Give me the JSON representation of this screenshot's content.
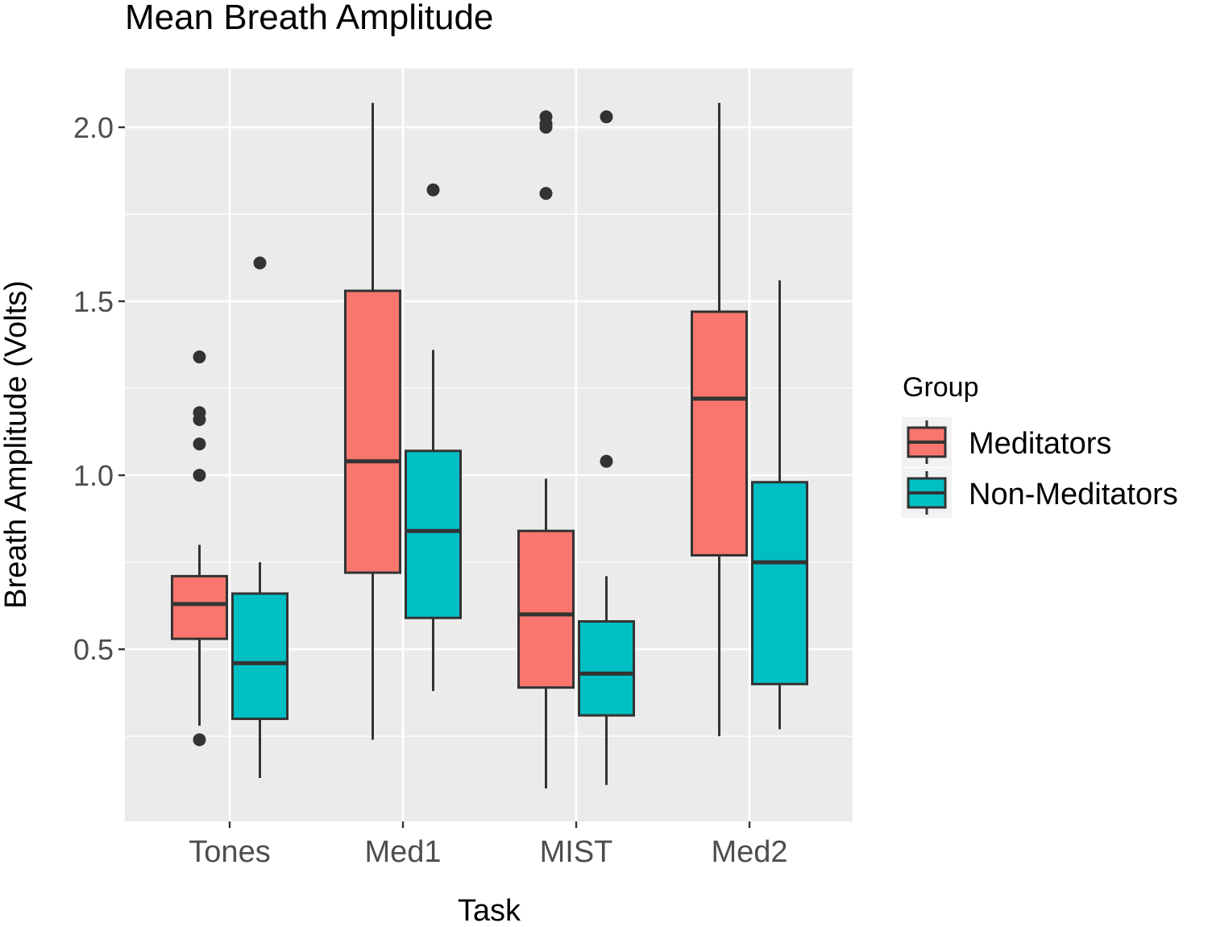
{
  "chart_data": {
    "type": "boxplot",
    "title": "Mean Breath Amplitude",
    "xlabel": "Task",
    "ylabel": "Breath Amplitude (Volts)",
    "categories": [
      "Tones",
      "Med1",
      "MIST",
      "Med2"
    ],
    "yticks": [
      0.5,
      1.0,
      1.5,
      2.0
    ],
    "ytick_labels": [
      "0.5",
      "1.0",
      "1.5",
      "2.0"
    ],
    "ylim": [
      0.005,
      2.169
    ],
    "grid": true,
    "legend": {
      "title": "Group",
      "placement": "right"
    },
    "series": [
      {
        "name": "Meditators",
        "color": "#F8766D",
        "boxes": [
          {
            "whisker_low": 0.28,
            "q1": 0.53,
            "median": 0.63,
            "q3": 0.71,
            "whisker_high": 0.8,
            "outliers": [
              1.34,
              1.18,
              1.16,
              1.09,
              1.0,
              0.24
            ]
          },
          {
            "whisker_low": 0.24,
            "q1": 0.72,
            "median": 1.04,
            "q3": 1.53,
            "whisker_high": 2.07,
            "outliers": []
          },
          {
            "whisker_low": 0.1,
            "q1": 0.39,
            "median": 0.6,
            "q3": 0.84,
            "whisker_high": 0.99,
            "outliers": [
              2.03,
              2.01,
              2.0,
              1.81
            ]
          },
          {
            "whisker_low": 0.25,
            "q1": 0.77,
            "median": 1.22,
            "q3": 1.47,
            "whisker_high": 2.07,
            "outliers": []
          }
        ]
      },
      {
        "name": "Non-Meditators",
        "color": "#00BFC4",
        "boxes": [
          {
            "whisker_low": 0.13,
            "q1": 0.3,
            "median": 0.46,
            "q3": 0.66,
            "whisker_high": 0.75,
            "outliers": [
              1.61
            ]
          },
          {
            "whisker_low": 0.38,
            "q1": 0.59,
            "median": 0.84,
            "q3": 1.07,
            "whisker_high": 1.36,
            "outliers": [
              1.82
            ]
          },
          {
            "whisker_low": 0.11,
            "q1": 0.31,
            "median": 0.43,
            "q3": 0.58,
            "whisker_high": 0.71,
            "outliers": [
              2.03,
              1.04
            ]
          },
          {
            "whisker_low": 0.27,
            "q1": 0.4,
            "median": 0.75,
            "q3": 0.98,
            "whisker_high": 1.56,
            "outliers": []
          }
        ]
      }
    ]
  }
}
